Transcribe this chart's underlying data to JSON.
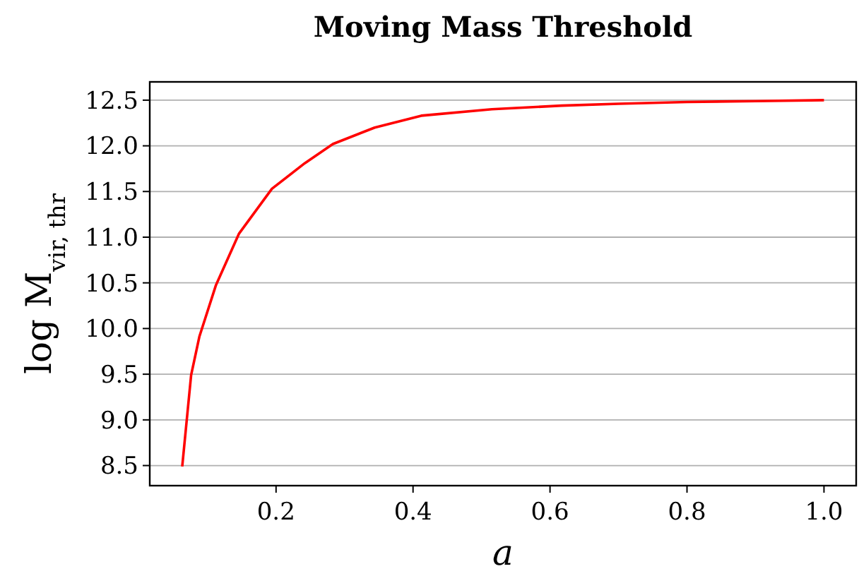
{
  "chart_data": {
    "type": "line",
    "title": "Moving Mass Threshold",
    "xlabel": "a",
    "ylabel": "log M$_{vir, thr}$",
    "xlim": [
      0.0156,
      1.047
    ],
    "ylim": [
      8.28,
      12.7
    ],
    "xticks": [
      0.2,
      0.4,
      0.6,
      0.8,
      {
        "value": 1,
        "label": "1.0"
      }
    ],
    "yticks": [
      8.5,
      {
        "value": 9,
        "label": "9.0"
      },
      9.5,
      {
        "value": 10,
        "label": "10.0"
      },
      10.5,
      {
        "value": 11,
        "label": "11.0"
      },
      11.5,
      {
        "value": 12,
        "label": "12.0"
      },
      12.5
    ],
    "grid": "y",
    "marker": "none",
    "line_style": "solid",
    "series": [
      {
        "color": "#ff0000",
        "x": [
          0.063,
          0.076,
          0.088,
          0.112,
          0.146,
          0.194,
          0.242,
          0.283,
          0.344,
          0.412,
          0.515,
          0.617,
          0.7,
          0.8,
          0.9,
          1.0
        ],
        "values": [
          8.49,
          9.49,
          9.91,
          10.47,
          11.04,
          11.53,
          11.81,
          12.02,
          12.2,
          12.33,
          12.4,
          12.44,
          12.46,
          12.48,
          12.49,
          12.5
        ]
      }
    ]
  }
}
